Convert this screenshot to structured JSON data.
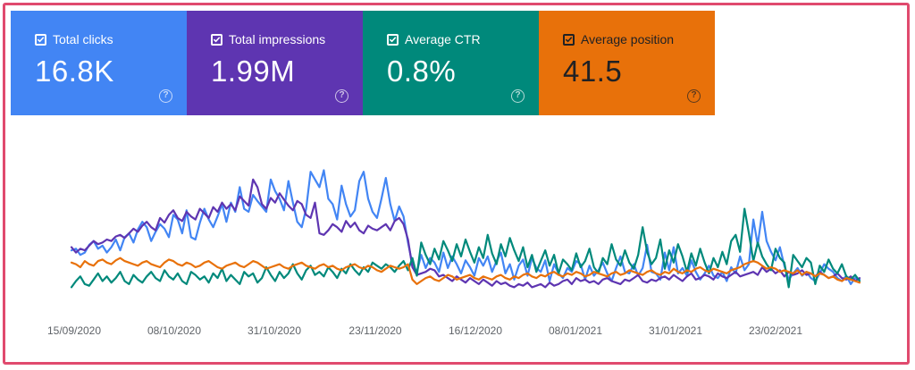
{
  "metrics": [
    {
      "label": "Total clicks",
      "value": "16.8K",
      "color": "#4285f4",
      "checked": true,
      "help_icon": "help-circle-icon"
    },
    {
      "label": "Total impressions",
      "value": "1.99M",
      "color": "#5e35b1",
      "checked": true,
      "help_icon": "help-circle-icon"
    },
    {
      "label": "Average CTR",
      "value": "0.8%",
      "color": "#00897b",
      "checked": true,
      "help_icon": "help-circle-icon"
    },
    {
      "label": "Average position",
      "value": "41.5",
      "color": "#e8710a",
      "checked": true,
      "help_icon": "help-circle-icon"
    }
  ],
  "chart_data": {
    "type": "line",
    "x_tick_labels": [
      "15/09/2020",
      "08/10/2020",
      "31/10/2020",
      "23/11/2020",
      "16/12/2020",
      "08/01/2021",
      "31/01/2021",
      "23/02/2021"
    ],
    "x_range": [
      "09/09/2020",
      "23/03/2021"
    ],
    "y_axis_visible": false,
    "grid": false,
    "series": [
      {
        "name": "Total clicks",
        "color": "#4285f4",
        "values": [
          58,
          60,
          52,
          55,
          65,
          70,
          60,
          64,
          55,
          62,
          72,
          58,
          75,
          80,
          68,
          85,
          95,
          88,
          70,
          82,
          92,
          86,
          75,
          104,
          98,
          80,
          110,
          75,
          72,
          94,
          112,
          98,
          88,
          102,
          118,
          95,
          120,
          108,
          140,
          112,
          108,
          130,
          122,
          115,
          108,
          150,
          135,
          125,
          110,
          148,
          120,
          95,
          88,
          112,
          160,
          150,
          140,
          162,
          125,
          118,
          98,
          142,
          118,
          102,
          110,
          148,
          160,
          125,
          108,
          100,
          125,
          152,
          118,
          96,
          115,
          102,
          68,
          40,
          30,
          52,
          35,
          48,
          42,
          30,
          55,
          35,
          50,
          40,
          28,
          45,
          36,
          25,
          48,
          38,
          50,
          30,
          44,
          55,
          28,
          40,
          20,
          38,
          46,
          25,
          48,
          35,
          30,
          45,
          18,
          40,
          28,
          22,
          35,
          30,
          44,
          40,
          20,
          38,
          25,
          32,
          42,
          28,
          18,
          35,
          50,
          30,
          28,
          40,
          25,
          35,
          65,
          30,
          28,
          20,
          55,
          32,
          62,
          28,
          35,
          25,
          45,
          30,
          20,
          28,
          38,
          25,
          22,
          30,
          18,
          36,
          28,
          50,
          32,
          40,
          98,
          65,
          108,
          70,
          56,
          45,
          62,
          38,
          20,
          28,
          35,
          25,
          30,
          22,
          18,
          28,
          40,
          34,
          30,
          22,
          18,
          25,
          14,
          22,
          20
        ]
      },
      {
        "name": "Total impressions",
        "color": "#5e35b1",
        "values": [
          62,
          55,
          60,
          58,
          64,
          70,
          66,
          68,
          72,
          70,
          76,
          78,
          74,
          80,
          86,
          82,
          90,
          95,
          88,
          84,
          100,
          94,
          104,
          110,
          100,
          96,
          108,
          102,
          98,
          112,
          106,
          100,
          114,
          108,
          120,
          112,
          118,
          110,
          128,
          122,
          116,
          150,
          140,
          118,
          112,
          126,
          120,
          132,
          124,
          116,
          110,
          122,
          118,
          104,
          100,
          120,
          80,
          78,
          84,
          92,
          88,
          82,
          96,
          88,
          94,
          84,
          80,
          90,
          86,
          84,
          88,
          92,
          84,
          96,
          100,
          92,
          72,
          36,
          26,
          28,
          30,
          34,
          32,
          24,
          26,
          22,
          18,
          24,
          20,
          16,
          22,
          18,
          14,
          20,
          16,
          12,
          18,
          14,
          16,
          12,
          10,
          14,
          12,
          16,
          10,
          12,
          14,
          10,
          16,
          12,
          14,
          18,
          20,
          14,
          22,
          18,
          20,
          16,
          18,
          14,
          20,
          22,
          18,
          16,
          14,
          20,
          18,
          22,
          26,
          18,
          16,
          20,
          18,
          22,
          24,
          20,
          26,
          22,
          18,
          24,
          28,
          20,
          22,
          26,
          24,
          20,
          28,
          24,
          22,
          26,
          30,
          24,
          26,
          28,
          30,
          26,
          36,
          30,
          34,
          28,
          32,
          24,
          30,
          26,
          28,
          32,
          26,
          28,
          24,
          30,
          26,
          22,
          24,
          28,
          22,
          20,
          24,
          18,
          22
        ]
      },
      {
        "name": "Average CTR",
        "color": "#00897b",
        "values": [
          10,
          18,
          24,
          14,
          12,
          20,
          28,
          18,
          24,
          16,
          22,
          30,
          18,
          14,
          26,
          20,
          16,
          24,
          30,
          22,
          18,
          32,
          24,
          20,
          28,
          18,
          14,
          30,
          26,
          20,
          24,
          16,
          28,
          22,
          34,
          18,
          26,
          20,
          14,
          30,
          24,
          28,
          16,
          22,
          36,
          26,
          18,
          30,
          22,
          28,
          40,
          28,
          20,
          32,
          38,
          26,
          30,
          24,
          36,
          30,
          22,
          34,
          28,
          40,
          32,
          26,
          36,
          30,
          42,
          38,
          34,
          40,
          36,
          30,
          38,
          44,
          32,
          48,
          25,
          68,
          52,
          40,
          60,
          46,
          70,
          58,
          44,
          66,
          50,
          72,
          56,
          42,
          62,
          48,
          78,
          54,
          40,
          66,
          50,
          74,
          58,
          44,
          62,
          36,
          52,
          30,
          44,
          58,
          38,
          52,
          28,
          46,
          40,
          32,
          54,
          36,
          44,
          60,
          36,
          28,
          48,
          40,
          66,
          46,
          38,
          58,
          42,
          34,
          52,
          88,
          56,
          40,
          48,
          72,
          34,
          58,
          42,
          66,
          50,
          30,
          54,
          38,
          60,
          42,
          28,
          48,
          36,
          56,
          40,
          70,
          78,
          56,
          112,
          80,
          44,
          68,
          50,
          40,
          32,
          60,
          48,
          42,
          10,
          52,
          44,
          36,
          48,
          42,
          14,
          38,
          30,
          46,
          34,
          28,
          40,
          24,
          20,
          26,
          18
        ]
      },
      {
        "name": "Average position",
        "color": "#e8710a",
        "values": [
          42,
          40,
          36,
          44,
          40,
          38,
          44,
          46,
          42,
          40,
          45,
          48,
          44,
          42,
          40,
          38,
          42,
          44,
          40,
          38,
          36,
          42,
          46,
          44,
          40,
          38,
          42,
          40,
          36,
          38,
          42,
          44,
          40,
          36,
          34,
          38,
          40,
          42,
          38,
          36,
          40,
          44,
          42,
          38,
          34,
          36,
          38,
          40,
          36,
          34,
          38,
          40,
          42,
          38,
          36,
          34,
          38,
          40,
          36,
          38,
          34,
          32,
          36,
          38,
          40,
          36,
          34,
          38,
          36,
          32,
          30,
          34,
          38,
          36,
          34,
          36,
          40,
          20,
          14,
          18,
          22,
          24,
          20,
          18,
          22,
          26,
          24,
          20,
          22,
          24,
          26,
          22,
          20,
          24,
          22,
          20,
          24,
          26,
          22,
          20,
          24,
          22,
          26,
          28,
          24,
          22,
          26,
          24,
          28,
          30,
          26,
          24,
          28,
          26,
          30,
          28,
          24,
          26,
          30,
          28,
          26,
          24,
          28,
          30,
          26,
          28,
          32,
          30,
          28,
          26,
          30,
          32,
          28,
          26,
          30,
          28,
          34,
          30,
          28,
          32,
          30,
          34,
          36,
          32,
          30,
          34,
          32,
          30,
          28,
          32,
          34,
          36,
          40,
          42,
          44,
          42,
          38,
          34,
          36,
          34,
          30,
          32,
          30,
          28,
          32,
          26,
          30,
          28,
          24,
          28,
          26,
          22,
          24,
          20,
          18,
          22,
          20,
          18,
          16
        ]
      }
    ]
  }
}
